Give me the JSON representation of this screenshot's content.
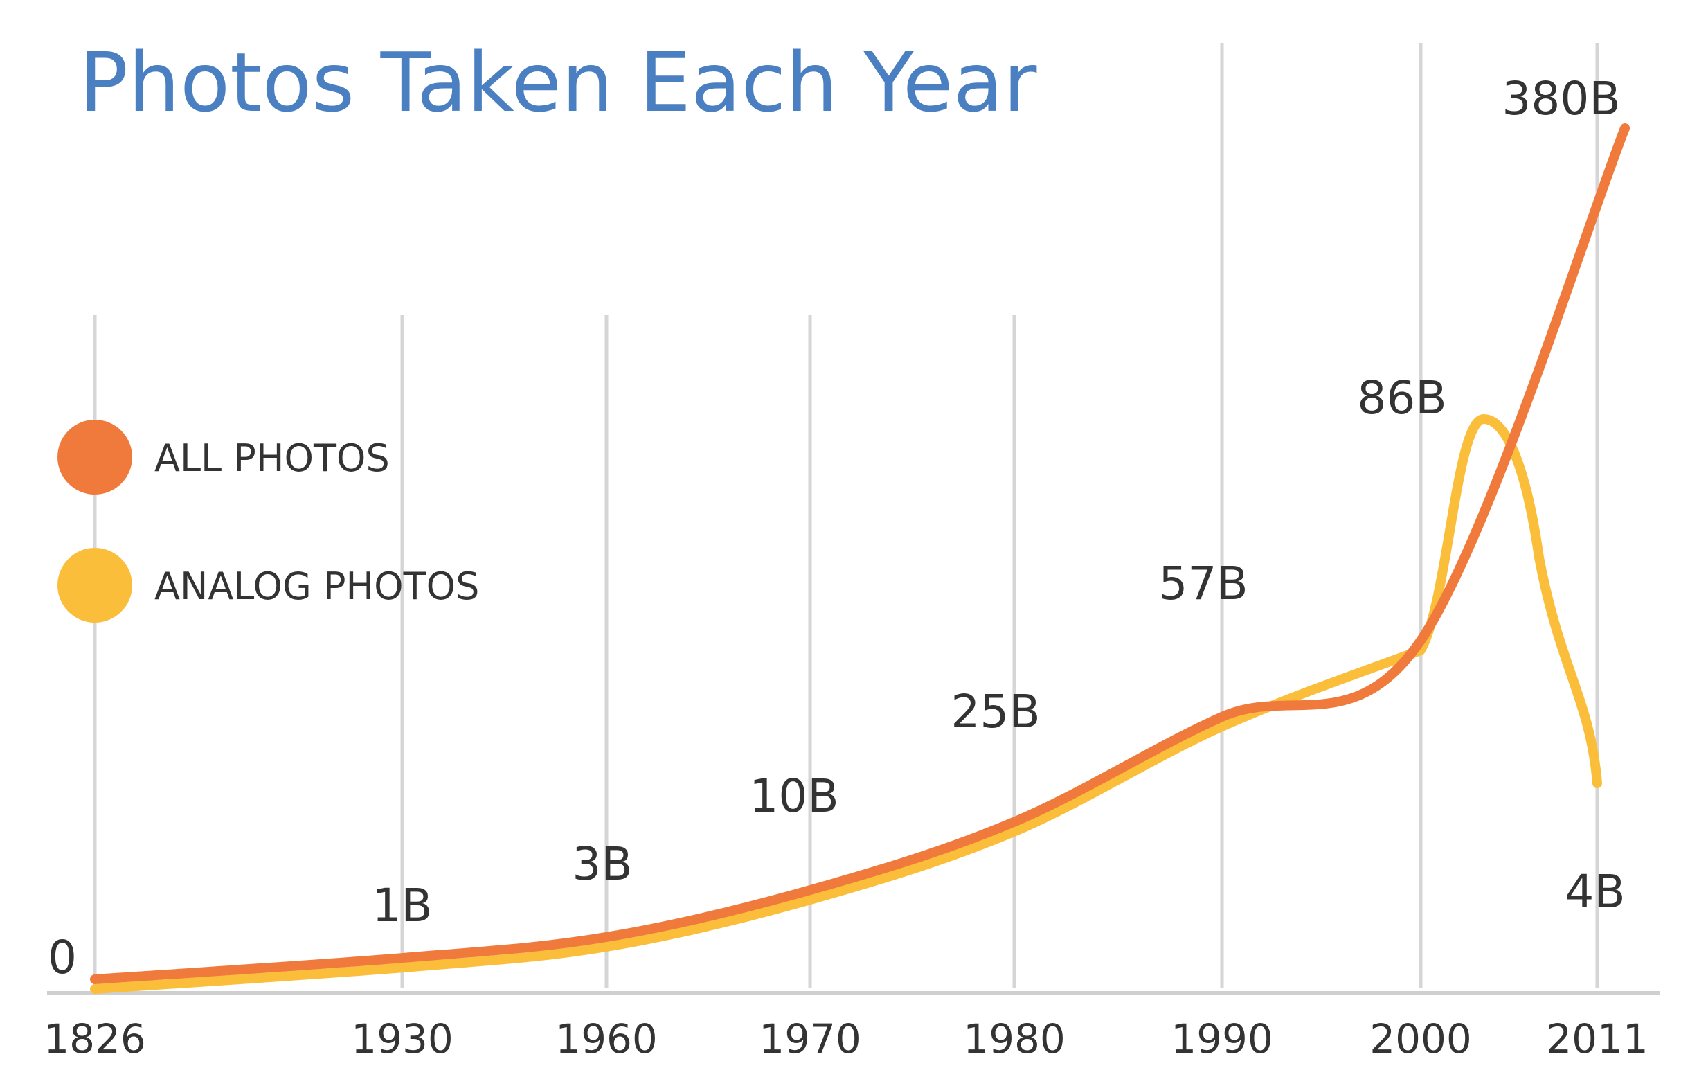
{
  "chart_data": {
    "type": "line",
    "title": "Photos Taken Each Year",
    "xlabel": "",
    "ylabel": "",
    "y_unit": "billions",
    "x_ticks": [
      "1826",
      "1930",
      "1960",
      "1970",
      "1980",
      "1990",
      "2000",
      "2011"
    ],
    "y_tick_labels": [
      "0"
    ],
    "grid": "vertical",
    "legend_position": "left",
    "series": [
      {
        "name": "ALL PHOTOS",
        "color": "#F07A3C",
        "points": [
          {
            "x": 1826,
            "y": 0
          },
          {
            "x": 1930,
            "y": 1
          },
          {
            "x": 1960,
            "y": 3
          },
          {
            "x": 1970,
            "y": 10
          },
          {
            "x": 1980,
            "y": 25
          },
          {
            "x": 1990,
            "y": 57
          },
          {
            "x": 2000,
            "y": 86
          },
          {
            "x": 2011,
            "y": 380
          }
        ]
      },
      {
        "name": "ANALOG PHOTOS",
        "color": "#FBBE3B",
        "points": [
          {
            "x": 1826,
            "y": 0
          },
          {
            "x": 1930,
            "y": 1
          },
          {
            "x": 1960,
            "y": 3
          },
          {
            "x": 1970,
            "y": 10
          },
          {
            "x": 1980,
            "y": 25
          },
          {
            "x": 1990,
            "y": 57
          },
          {
            "x": 2000,
            "y": 86
          },
          {
            "x": 2011,
            "y": 4
          }
        ]
      }
    ],
    "data_labels": [
      {
        "x": 1826,
        "text": "0"
      },
      {
        "x": 1930,
        "text": "1B"
      },
      {
        "x": 1960,
        "text": "3B"
      },
      {
        "x": 1970,
        "text": "10B"
      },
      {
        "x": 1980,
        "text": "25B"
      },
      {
        "x": 1990,
        "text": "57B"
      },
      {
        "x": 2000,
        "text": "86B"
      },
      {
        "x": 2011,
        "text": "380B",
        "series": "ALL PHOTOS"
      },
      {
        "x": 2011,
        "text": "4B",
        "series": "ANALOG PHOTOS"
      }
    ]
  },
  "colors": {
    "title": "#4A7FC1",
    "gridline": "#D6D6D6",
    "axis": "#CFCFCF",
    "label_text": "#333333"
  }
}
